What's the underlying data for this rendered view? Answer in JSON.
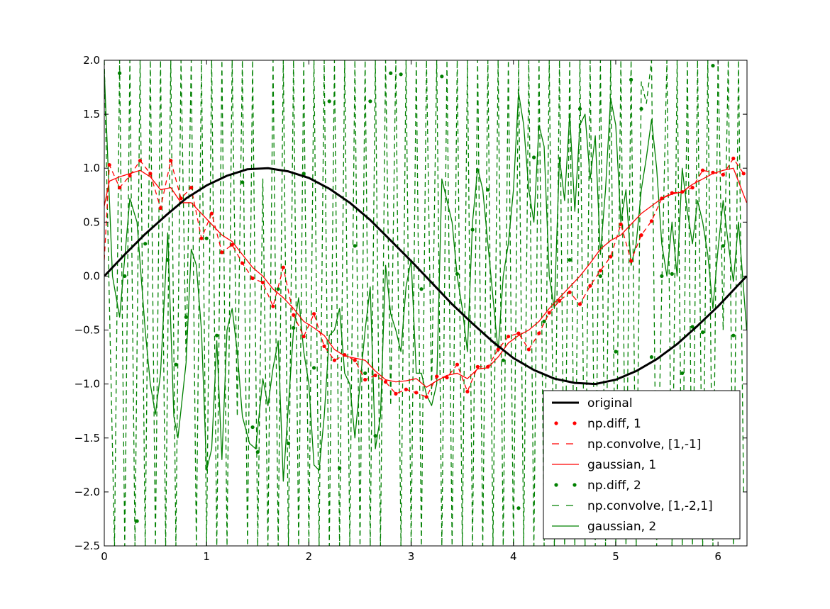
{
  "chart_data": {
    "type": "line",
    "title": "",
    "xlabel": "",
    "ylabel": "",
    "xlim": [
      0,
      6.2832
    ],
    "ylim": [
      -2.5,
      2.0
    ],
    "x_ticks": [
      "0",
      "1",
      "2",
      "3",
      "4",
      "5",
      "6"
    ],
    "y_ticks": [
      "2.0",
      "1.5",
      "1.0",
      "0.5",
      "0.0",
      "−0.5",
      "−1.0",
      "−1.5",
      "−2.0",
      "−2.5"
    ],
    "legend_position": "lower-right",
    "grid": false,
    "series": [
      {
        "name": "original",
        "style": "line",
        "color": "#000000",
        "x": [
          0,
          0.2,
          0.4,
          0.6,
          0.8,
          1.0,
          1.2,
          1.4,
          1.6,
          1.8,
          2.0,
          2.2,
          2.4,
          2.6,
          2.8,
          3.0,
          3.2,
          3.4,
          3.6,
          3.8,
          4.0,
          4.2,
          4.4,
          4.6,
          4.8,
          5.0,
          5.2,
          5.4,
          5.6,
          5.8,
          6.0,
          6.2,
          6.28
        ],
        "y": [
          0.0,
          0.2,
          0.39,
          0.56,
          0.72,
          0.84,
          0.93,
          0.99,
          1.0,
          0.97,
          0.91,
          0.81,
          0.68,
          0.52,
          0.33,
          0.14,
          -0.06,
          -0.26,
          -0.44,
          -0.61,
          -0.76,
          -0.87,
          -0.95,
          -0.99,
          -1.0,
          -0.96,
          -0.88,
          -0.77,
          -0.63,
          -0.46,
          -0.28,
          -0.08,
          0.0
        ]
      },
      {
        "name": "np.diff, 1",
        "style": "dots",
        "color": "#ff0000",
        "x": [
          0.05,
          0.15,
          0.25,
          0.35,
          0.45,
          0.55,
          0.65,
          0.75,
          0.85,
          0.95,
          1.05,
          1.15,
          1.25,
          1.35,
          1.45,
          1.55,
          1.65,
          1.75,
          1.85,
          1.95,
          2.05,
          2.15,
          2.25,
          2.35,
          2.45,
          2.55,
          2.65,
          2.75,
          2.85,
          2.95,
          3.05,
          3.15,
          3.25,
          3.35,
          3.45,
          3.55,
          3.65,
          3.75,
          3.85,
          3.95,
          4.05,
          4.15,
          4.25,
          4.35,
          4.45,
          4.55,
          4.65,
          4.75,
          4.85,
          4.95,
          5.05,
          5.15,
          5.25,
          5.35,
          5.45,
          5.55,
          5.65,
          5.75,
          5.85,
          5.95,
          6.05,
          6.15,
          6.25
        ],
        "y": [
          1.03,
          0.82,
          0.93,
          1.07,
          0.95,
          0.63,
          1.07,
          0.72,
          0.82,
          0.35,
          0.58,
          0.22,
          0.29,
          0.12,
          -0.02,
          -0.06,
          -0.28,
          0.08,
          -0.36,
          -0.56,
          -0.35,
          -0.65,
          -0.78,
          -0.73,
          -0.78,
          -0.96,
          -0.92,
          -0.98,
          -1.09,
          -1.05,
          -1.08,
          -1.12,
          -0.93,
          -0.94,
          -0.82,
          -1.07,
          -0.84,
          -0.84,
          -0.68,
          -0.56,
          -0.53,
          -0.68,
          -0.53,
          -0.34,
          -0.23,
          -0.15,
          -0.26,
          -0.09,
          0.05,
          0.18,
          0.48,
          0.14,
          0.38,
          0.51,
          0.72,
          0.77,
          0.78,
          0.82,
          0.98,
          0.96,
          0.94,
          1.09,
          0.95
        ]
      },
      {
        "name": "np.convolve, [1,-1]",
        "style": "dashed",
        "color": "#ff0000",
        "x": [
          0.0,
          0.05,
          0.15,
          0.25,
          0.35,
          0.45,
          0.55,
          0.65,
          0.75,
          0.85,
          0.95,
          1.05,
          1.15,
          1.25,
          1.35,
          1.45,
          1.55,
          1.65,
          1.75,
          1.85,
          1.95,
          2.05,
          2.15,
          2.25,
          2.35,
          2.45,
          2.55,
          2.65,
          2.75,
          2.85,
          2.95,
          3.05,
          3.15,
          3.25,
          3.35,
          3.45,
          3.55,
          3.65,
          3.75,
          3.85,
          3.95,
          4.05,
          4.15,
          4.25,
          4.35,
          4.45,
          4.55,
          4.65,
          4.75,
          4.85,
          4.95,
          5.05,
          5.15,
          5.25,
          5.35,
          5.45,
          5.55,
          5.65,
          5.75,
          5.85,
          5.95,
          6.05,
          6.15,
          6.25
        ],
        "y": [
          0.15,
          1.03,
          0.82,
          0.93,
          1.07,
          0.95,
          0.63,
          1.07,
          0.72,
          0.82,
          0.35,
          0.58,
          0.22,
          0.29,
          0.12,
          -0.02,
          -0.06,
          -0.28,
          0.08,
          -0.36,
          -0.56,
          -0.35,
          -0.65,
          -0.78,
          -0.73,
          -0.78,
          -0.96,
          -0.92,
          -0.98,
          -1.09,
          -1.05,
          -1.08,
          -1.12,
          -0.93,
          -0.94,
          -0.82,
          -1.07,
          -0.84,
          -0.84,
          -0.68,
          -0.56,
          -0.53,
          -0.68,
          -0.53,
          -0.34,
          -0.23,
          -0.15,
          -0.26,
          -0.09,
          0.05,
          0.18,
          0.48,
          0.14,
          0.38,
          0.51,
          0.72,
          0.77,
          0.78,
          0.82,
          0.98,
          0.96,
          0.94,
          1.09,
          0.95
        ]
      },
      {
        "name": "gaussian, 1",
        "style": "line",
        "color": "#ff0000",
        "x": [
          0.0,
          0.05,
          0.15,
          0.25,
          0.35,
          0.45,
          0.55,
          0.65,
          0.75,
          0.85,
          0.95,
          1.05,
          1.15,
          1.25,
          1.35,
          1.45,
          1.55,
          1.65,
          1.75,
          1.85,
          1.95,
          2.05,
          2.15,
          2.25,
          2.35,
          2.45,
          2.55,
          2.65,
          2.75,
          2.85,
          2.95,
          3.05,
          3.15,
          3.25,
          3.35,
          3.45,
          3.55,
          3.65,
          3.75,
          3.85,
          3.95,
          4.05,
          4.15,
          4.25,
          4.35,
          4.45,
          4.55,
          4.65,
          4.75,
          4.85,
          4.95,
          5.05,
          5.15,
          5.25,
          5.35,
          5.45,
          5.55,
          5.65,
          5.75,
          5.85,
          5.95,
          6.05,
          6.15,
          6.28
        ],
        "y": [
          0.65,
          0.88,
          0.92,
          0.95,
          0.98,
          0.92,
          0.8,
          0.82,
          0.68,
          0.68,
          0.58,
          0.48,
          0.38,
          0.32,
          0.2,
          0.08,
          0.0,
          -0.12,
          -0.2,
          -0.3,
          -0.42,
          -0.48,
          -0.55,
          -0.68,
          -0.74,
          -0.76,
          -0.78,
          -0.88,
          -0.96,
          -0.98,
          -0.97,
          -0.95,
          -1.03,
          -0.97,
          -0.92,
          -0.9,
          -0.95,
          -0.86,
          -0.85,
          -0.75,
          -0.62,
          -0.55,
          -0.5,
          -0.42,
          -0.3,
          -0.2,
          -0.1,
          0.0,
          0.12,
          0.25,
          0.33,
          0.38,
          0.48,
          0.58,
          0.65,
          0.72,
          0.76,
          0.78,
          0.85,
          0.9,
          0.95,
          0.98,
          1.0,
          0.68
        ]
      },
      {
        "name": "np.diff, 2",
        "style": "dots",
        "color": "#008000",
        "x": [
          0.15,
          0.2,
          0.32,
          0.4,
          0.53,
          0.62,
          0.7,
          0.8,
          1.0,
          1.1,
          1.35,
          1.45,
          1.5,
          1.7,
          1.8,
          1.85,
          1.95,
          2.05,
          2.2,
          2.3,
          2.45,
          2.55,
          2.6,
          2.65,
          2.8,
          2.9,
          3.1,
          3.3,
          3.45,
          3.6,
          3.75,
          3.9,
          4.05,
          4.2,
          4.3,
          4.55,
          4.65,
          4.85,
          5.0,
          5.15,
          5.25,
          5.35,
          5.45,
          5.55,
          5.65,
          5.75,
          5.85,
          5.95,
          6.05,
          6.15
        ],
        "y": [
          1.88,
          0.0,
          -2.27,
          0.3,
          2.25,
          0.15,
          -0.82,
          -0.38,
          0.35,
          -0.55,
          0.87,
          -1.4,
          -1.63,
          -0.12,
          -1.55,
          -0.48,
          0.95,
          -0.85,
          1.62,
          -1.78,
          0.28,
          -0.9,
          1.62,
          -1.48,
          1.88,
          1.87,
          -0.12,
          1.85,
          0.02,
          0.43,
          0.8,
          -0.78,
          -2.15,
          1.1,
          -0.42,
          0.15,
          1.55,
          0.0,
          -0.7,
          1.82,
          1.55,
          -0.75,
          0.0,
          0.02,
          -0.9,
          -0.47,
          -0.52,
          1.95,
          0.28,
          -0.55
        ]
      },
      {
        "name": "np.convolve, [1,-2,1]",
        "style": "dashed",
        "color": "#008000",
        "x": [
          0.0,
          0.1,
          0.15,
          0.2,
          0.25,
          0.3,
          0.35,
          0.4,
          0.45,
          0.5,
          0.55,
          0.6,
          0.65,
          0.7,
          0.75,
          0.8,
          0.85,
          0.9,
          0.95,
          1.0,
          1.05,
          1.1,
          1.15,
          1.2,
          1.25,
          1.3,
          1.35,
          1.4,
          1.45,
          1.5,
          1.55,
          1.6,
          1.65,
          1.7,
          1.75,
          1.8,
          1.85,
          1.9,
          1.95,
          2.0,
          2.05,
          2.1,
          2.15,
          2.2,
          2.25,
          2.3,
          2.35,
          2.4,
          2.45,
          2.5,
          2.55,
          2.6,
          2.65,
          2.7,
          2.75,
          2.8,
          2.85,
          2.9,
          2.95,
          3.0,
          3.05,
          3.1,
          3.15,
          3.2,
          3.25,
          3.3,
          3.35,
          3.4,
          3.45,
          3.5,
          3.55,
          3.6,
          3.65,
          3.7,
          3.75,
          3.8,
          3.85,
          3.9,
          3.95,
          4.0,
          4.05,
          4.1,
          4.15,
          4.2,
          4.25,
          4.3,
          4.35,
          4.4,
          4.45,
          4.5,
          4.55,
          4.6,
          4.65,
          4.7,
          4.75,
          4.8,
          4.85,
          4.9,
          4.95,
          5.0,
          5.05,
          5.1,
          5.15,
          5.2,
          5.25,
          5.3,
          5.35,
          5.4,
          5.45,
          5.5,
          5.55,
          5.6,
          5.65,
          5.7,
          5.75,
          5.8,
          5.85,
          5.9,
          5.95,
          6.0,
          6.05,
          6.1,
          6.15,
          6.2,
          6.25
        ],
        "y": [
          2.0,
          -2.5,
          2.0,
          -2.5,
          2.0,
          -2.5,
          2.0,
          -2.5,
          2.0,
          -2.5,
          2.0,
          -2.5,
          2.0,
          -2.5,
          2.0,
          -0.8,
          2.0,
          -2.5,
          2.0,
          -2.5,
          2.0,
          -2.5,
          2.0,
          -2.5,
          2.0,
          -1.3,
          2.0,
          -2.5,
          2.0,
          -2.5,
          0.9,
          -2.5,
          2.0,
          -2.5,
          2.0,
          -2.5,
          2.0,
          -2.5,
          2.0,
          -2.5,
          2.0,
          -2.5,
          2.0,
          -2.5,
          2.0,
          -2.5,
          2.0,
          -2.5,
          2.0,
          -2.5,
          2.0,
          -2.5,
          2.0,
          -2.5,
          2.0,
          -1.2,
          2.0,
          -2.5,
          2.0,
          -2.5,
          2.0,
          -2.5,
          2.0,
          -1.1,
          2.0,
          -2.5,
          2.0,
          -2.5,
          2.0,
          -2.5,
          2.0,
          -2.5,
          2.0,
          -2.5,
          2.0,
          -2.5,
          2.0,
          -2.5,
          2.0,
          -2.5,
          2.0,
          -2.5,
          2.0,
          -2.5,
          2.0,
          -2.5,
          2.0,
          -2.5,
          2.0,
          -2.5,
          2.0,
          -2.5,
          2.0,
          -2.5,
          2.0,
          -2.5,
          2.0,
          -2.5,
          2.0,
          -2.5,
          2.0,
          -2.5,
          2.0,
          -2.5,
          1.8,
          1.6,
          2.0,
          -2.5,
          -0.1,
          2.0,
          -2.5,
          2.0,
          -2.5,
          2.0,
          -2.5,
          2.0,
          -2.5,
          2.0,
          -2.5,
          2.0,
          -0.5,
          2.0,
          -2.5,
          2.0,
          -2.0
        ]
      },
      {
        "name": "gaussian, 2",
        "style": "line",
        "color": "#008000",
        "x": [
          0.0,
          0.08,
          0.15,
          0.25,
          0.32,
          0.4,
          0.45,
          0.5,
          0.55,
          0.62,
          0.68,
          0.72,
          0.8,
          0.85,
          0.9,
          0.95,
          1.0,
          1.05,
          1.1,
          1.15,
          1.2,
          1.25,
          1.3,
          1.35,
          1.42,
          1.48,
          1.55,
          1.6,
          1.65,
          1.7,
          1.75,
          1.8,
          1.85,
          1.9,
          1.95,
          2.0,
          2.05,
          2.1,
          2.15,
          2.2,
          2.25,
          2.3,
          2.35,
          2.4,
          2.45,
          2.5,
          2.55,
          2.6,
          2.65,
          2.7,
          2.75,
          2.8,
          2.85,
          2.9,
          2.95,
          3.0,
          3.05,
          3.1,
          3.15,
          3.2,
          3.25,
          3.3,
          3.35,
          3.4,
          3.45,
          3.5,
          3.55,
          3.6,
          3.65,
          3.7,
          3.75,
          3.8,
          3.85,
          3.9,
          3.95,
          4.0,
          4.05,
          4.1,
          4.15,
          4.2,
          4.25,
          4.3,
          4.35,
          4.4,
          4.45,
          4.5,
          4.55,
          4.6,
          4.65,
          4.7,
          4.75,
          4.8,
          4.85,
          4.9,
          4.95,
          5.0,
          5.05,
          5.1,
          5.15,
          5.2,
          5.25,
          5.3,
          5.35,
          5.4,
          5.45,
          5.5,
          5.55,
          5.6,
          5.65,
          5.7,
          5.75,
          5.8,
          5.85,
          5.9,
          5.95,
          6.0,
          6.05,
          6.1,
          6.15,
          6.2,
          6.28
        ],
        "y": [
          1.9,
          0.0,
          -0.38,
          0.72,
          0.5,
          -0.5,
          -1.0,
          -1.28,
          -0.9,
          0.4,
          -1.3,
          -1.5,
          -0.8,
          0.25,
          0.1,
          -0.5,
          -1.8,
          -1.6,
          -0.6,
          -1.7,
          -0.5,
          -0.3,
          -0.7,
          -1.3,
          -1.55,
          -1.6,
          -0.95,
          -1.2,
          -0.85,
          -0.6,
          -1.9,
          -1.2,
          -0.5,
          -0.2,
          -0.7,
          -1.0,
          -1.75,
          -1.8,
          -1.3,
          -0.55,
          -0.5,
          -0.3,
          -0.9,
          -1.0,
          -1.5,
          -1.0,
          -0.5,
          -0.1,
          -1.6,
          -1.3,
          0.1,
          -0.35,
          -0.5,
          -0.7,
          -0.1,
          0.15,
          -0.9,
          -0.9,
          -1.1,
          -1.2,
          -1.0,
          0.9,
          0.7,
          0.5,
          0.0,
          -0.3,
          -0.7,
          0.5,
          1.0,
          0.8,
          0.3,
          -0.2,
          -0.7,
          0.0,
          0.3,
          0.8,
          1.7,
          1.4,
          0.8,
          0.5,
          1.4,
          1.2,
          0.0,
          -0.3,
          1.1,
          0.7,
          1.5,
          0.6,
          1.4,
          1.5,
          0.9,
          1.3,
          0.2,
          0.8,
          1.65,
          1.4,
          0.5,
          0.8,
          0.1,
          0.3,
          0.8,
          1.1,
          1.45,
          1.0,
          0.3,
          0.0,
          0.5,
          0.0,
          1.0,
          0.6,
          0.3,
          0.7,
          0.5,
          0.2,
          -0.3,
          0.25,
          0.7,
          0.3,
          -0.05,
          0.5,
          -0.5
        ]
      }
    ]
  }
}
